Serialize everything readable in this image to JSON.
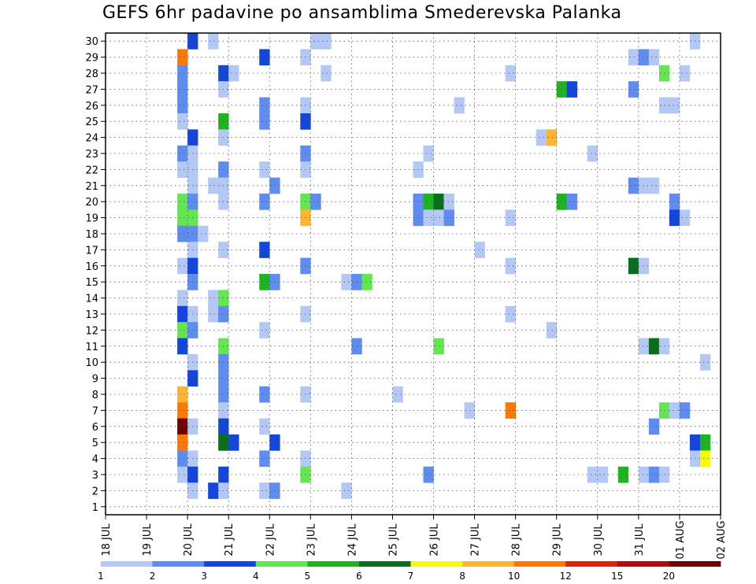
{
  "chart_data": {
    "type": "heatmap",
    "title": "GEFS 6hr padavine po ansamblima Smederevska Palanka",
    "x_tick_labels": [
      "18 JUL",
      "19 JUL",
      "20 JUL",
      "21 JUL",
      "22 JUL",
      "23 JUL",
      "24 JUL",
      "25 JUL",
      "26 JUL",
      "27 JUL",
      "28 JUL",
      "29 JUL",
      "30 JUL",
      "31 JUL",
      "01 AUG",
      "02 AUG"
    ],
    "y_tick_labels": [
      1,
      2,
      3,
      4,
      5,
      6,
      7,
      8,
      9,
      10,
      11,
      12,
      13,
      14,
      15,
      16,
      17,
      18,
      19,
      20,
      21,
      22,
      23,
      24,
      25,
      26,
      27,
      28,
      29,
      30
    ],
    "x_unit": "6-hour step (4 steps per day)",
    "grid": true,
    "colorbar": {
      "levels": [
        1,
        2,
        3,
        4,
        5,
        6,
        7,
        8,
        10,
        12,
        15,
        20
      ],
      "labels": [
        "1",
        "2",
        "3",
        "4",
        "5",
        "6",
        "7",
        "8",
        "10",
        "12",
        "15",
        "20"
      ],
      "colors": [
        "#b4c8f5",
        "#5f8cf0",
        "#1446dc",
        "#64e650",
        "#1eb41e",
        "#0a6e1e",
        "#fafa00",
        "#ffb432",
        "#ff7800",
        "#e61e0a",
        "#b40a0a",
        "#6e0000"
      ]
    },
    "cells": [
      {
        "m": 30,
        "t": 8,
        "c": 2
      },
      {
        "m": 30,
        "t": 10,
        "c": 0
      },
      {
        "m": 30,
        "t": 20,
        "c": 0
      },
      {
        "m": 30,
        "t": 21,
        "c": 0
      },
      {
        "m": 30,
        "t": 57,
        "c": 0
      },
      {
        "m": 29,
        "t": 7,
        "c": 8
      },
      {
        "m": 29,
        "t": 15,
        "c": 2
      },
      {
        "m": 29,
        "t": 19,
        "c": 0
      },
      {
        "m": 29,
        "t": 51,
        "c": 0
      },
      {
        "m": 29,
        "t": 52,
        "c": 1
      },
      {
        "m": 29,
        "t": 53,
        "c": 0
      },
      {
        "m": 28,
        "t": 7,
        "c": 1
      },
      {
        "m": 28,
        "t": 11,
        "c": 2
      },
      {
        "m": 28,
        "t": 12,
        "c": 0
      },
      {
        "m": 28,
        "t": 21,
        "c": 0
      },
      {
        "m": 28,
        "t": 39,
        "c": 0
      },
      {
        "m": 28,
        "t": 54,
        "c": 3
      },
      {
        "m": 28,
        "t": 56,
        "c": 0
      },
      {
        "m": 27,
        "t": 7,
        "c": 1
      },
      {
        "m": 27,
        "t": 11,
        "c": 0
      },
      {
        "m": 27,
        "t": 44,
        "c": 4
      },
      {
        "m": 27,
        "t": 45,
        "c": 2
      },
      {
        "m": 27,
        "t": 51,
        "c": 1
      },
      {
        "m": 26,
        "t": 7,
        "c": 1
      },
      {
        "m": 26,
        "t": 15,
        "c": 1
      },
      {
        "m": 26,
        "t": 19,
        "c": 0
      },
      {
        "m": 26,
        "t": 34,
        "c": 0
      },
      {
        "m": 26,
        "t": 54,
        "c": 0
      },
      {
        "m": 26,
        "t": 55,
        "c": 0
      },
      {
        "m": 25,
        "t": 7,
        "c": 0
      },
      {
        "m": 25,
        "t": 11,
        "c": 4
      },
      {
        "m": 25,
        "t": 15,
        "c": 1
      },
      {
        "m": 25,
        "t": 19,
        "c": 2
      },
      {
        "m": 24,
        "t": 8,
        "c": 2
      },
      {
        "m": 24,
        "t": 11,
        "c": 0
      },
      {
        "m": 24,
        "t": 42,
        "c": 0
      },
      {
        "m": 24,
        "t": 43,
        "c": 7
      },
      {
        "m": 23,
        "t": 7,
        "c": 1
      },
      {
        "m": 23,
        "t": 8,
        "c": 0
      },
      {
        "m": 23,
        "t": 19,
        "c": 1
      },
      {
        "m": 23,
        "t": 31,
        "c": 0
      },
      {
        "m": 23,
        "t": 47,
        "c": 0
      },
      {
        "m": 22,
        "t": 7,
        "c": 0
      },
      {
        "m": 22,
        "t": 8,
        "c": 0
      },
      {
        "m": 22,
        "t": 11,
        "c": 1
      },
      {
        "m": 22,
        "t": 15,
        "c": 0
      },
      {
        "m": 22,
        "t": 19,
        "c": 0
      },
      {
        "m": 22,
        "t": 30,
        "c": 0
      },
      {
        "m": 21,
        "t": 8,
        "c": 0
      },
      {
        "m": 21,
        "t": 10,
        "c": 0
      },
      {
        "m": 21,
        "t": 11,
        "c": 0
      },
      {
        "m": 21,
        "t": 16,
        "c": 1
      },
      {
        "m": 21,
        "t": 51,
        "c": 1
      },
      {
        "m": 21,
        "t": 52,
        "c": 0
      },
      {
        "m": 21,
        "t": 53,
        "c": 0
      },
      {
        "m": 20,
        "t": 7,
        "c": 3
      },
      {
        "m": 20,
        "t": 8,
        "c": 1
      },
      {
        "m": 20,
        "t": 11,
        "c": 0
      },
      {
        "m": 20,
        "t": 15,
        "c": 1
      },
      {
        "m": 20,
        "t": 19,
        "c": 3
      },
      {
        "m": 20,
        "t": 20,
        "c": 1
      },
      {
        "m": 20,
        "t": 30,
        "c": 1
      },
      {
        "m": 20,
        "t": 31,
        "c": 4
      },
      {
        "m": 20,
        "t": 32,
        "c": 5
      },
      {
        "m": 20,
        "t": 33,
        "c": 0
      },
      {
        "m": 20,
        "t": 44,
        "c": 4
      },
      {
        "m": 20,
        "t": 45,
        "c": 1
      },
      {
        "m": 20,
        "t": 55,
        "c": 1
      },
      {
        "m": 19,
        "t": 7,
        "c": 3
      },
      {
        "m": 19,
        "t": 8,
        "c": 3
      },
      {
        "m": 19,
        "t": 19,
        "c": 7
      },
      {
        "m": 19,
        "t": 30,
        "c": 1
      },
      {
        "m": 19,
        "t": 31,
        "c": 0
      },
      {
        "m": 19,
        "t": 32,
        "c": 0
      },
      {
        "m": 19,
        "t": 33,
        "c": 1
      },
      {
        "m": 19,
        "t": 39,
        "c": 0
      },
      {
        "m": 19,
        "t": 55,
        "c": 2
      },
      {
        "m": 19,
        "t": 56,
        "c": 0
      },
      {
        "m": 18,
        "t": 7,
        "c": 1
      },
      {
        "m": 18,
        "t": 8,
        "c": 1
      },
      {
        "m": 18,
        "t": 9,
        "c": 0
      },
      {
        "m": 17,
        "t": 8,
        "c": 0
      },
      {
        "m": 17,
        "t": 11,
        "c": 0
      },
      {
        "m": 17,
        "t": 15,
        "c": 2
      },
      {
        "m": 17,
        "t": 36,
        "c": 0
      },
      {
        "m": 16,
        "t": 7,
        "c": 0
      },
      {
        "m": 16,
        "t": 8,
        "c": 2
      },
      {
        "m": 16,
        "t": 19,
        "c": 1
      },
      {
        "m": 16,
        "t": 39,
        "c": 0
      },
      {
        "m": 16,
        "t": 51,
        "c": 5
      },
      {
        "m": 16,
        "t": 52,
        "c": 0
      },
      {
        "m": 15,
        "t": 8,
        "c": 1
      },
      {
        "m": 15,
        "t": 15,
        "c": 4
      },
      {
        "m": 15,
        "t": 16,
        "c": 1
      },
      {
        "m": 15,
        "t": 23,
        "c": 0
      },
      {
        "m": 15,
        "t": 24,
        "c": 1
      },
      {
        "m": 15,
        "t": 25,
        "c": 3
      },
      {
        "m": 14,
        "t": 7,
        "c": 0
      },
      {
        "m": 14,
        "t": 10,
        "c": 0
      },
      {
        "m": 14,
        "t": 11,
        "c": 3
      },
      {
        "m": 13,
        "t": 7,
        "c": 2
      },
      {
        "m": 13,
        "t": 8,
        "c": 0
      },
      {
        "m": 13,
        "t": 10,
        "c": 0
      },
      {
        "m": 13,
        "t": 11,
        "c": 1
      },
      {
        "m": 13,
        "t": 19,
        "c": 0
      },
      {
        "m": 13,
        "t": 39,
        "c": 0
      },
      {
        "m": 12,
        "t": 7,
        "c": 3
      },
      {
        "m": 12,
        "t": 8,
        "c": 1
      },
      {
        "m": 12,
        "t": 15,
        "c": 0
      },
      {
        "m": 12,
        "t": 43,
        "c": 0
      },
      {
        "m": 11,
        "t": 7,
        "c": 2
      },
      {
        "m": 11,
        "t": 11,
        "c": 3
      },
      {
        "m": 11,
        "t": 24,
        "c": 1
      },
      {
        "m": 11,
        "t": 32,
        "c": 3
      },
      {
        "m": 11,
        "t": 52,
        "c": 0
      },
      {
        "m": 11,
        "t": 53,
        "c": 5
      },
      {
        "m": 11,
        "t": 54,
        "c": 0
      },
      {
        "m": 10,
        "t": 8,
        "c": 0
      },
      {
        "m": 10,
        "t": 11,
        "c": 1
      },
      {
        "m": 10,
        "t": 58,
        "c": 0
      },
      {
        "m": 9,
        "t": 8,
        "c": 2
      },
      {
        "m": 9,
        "t": 11,
        "c": 1
      },
      {
        "m": 8,
        "t": 7,
        "c": 7
      },
      {
        "m": 8,
        "t": 11,
        "c": 1
      },
      {
        "m": 8,
        "t": 15,
        "c": 1
      },
      {
        "m": 8,
        "t": 19,
        "c": 0
      },
      {
        "m": 8,
        "t": 28,
        "c": 0
      },
      {
        "m": 7,
        "t": 7,
        "c": 8
      },
      {
        "m": 7,
        "t": 11,
        "c": 0
      },
      {
        "m": 7,
        "t": 35,
        "c": 0
      },
      {
        "m": 7,
        "t": 39,
        "c": 8
      },
      {
        "m": 7,
        "t": 54,
        "c": 3
      },
      {
        "m": 7,
        "t": 55,
        "c": 0
      },
      {
        "m": 7,
        "t": 56,
        "c": 1
      },
      {
        "m": 6,
        "t": 7,
        "c": 11
      },
      {
        "m": 6,
        "t": 8,
        "c": 0
      },
      {
        "m": 6,
        "t": 11,
        "c": 2
      },
      {
        "m": 6,
        "t": 15,
        "c": 0
      },
      {
        "m": 6,
        "t": 53,
        "c": 1
      },
      {
        "m": 5,
        "t": 7,
        "c": 8
      },
      {
        "m": 5,
        "t": 11,
        "c": 5
      },
      {
        "m": 5,
        "t": 12,
        "c": 2
      },
      {
        "m": 5,
        "t": 16,
        "c": 2
      },
      {
        "m": 5,
        "t": 57,
        "c": 2
      },
      {
        "m": 5,
        "t": 58,
        "c": 4
      },
      {
        "m": 4,
        "t": 7,
        "c": 1
      },
      {
        "m": 4,
        "t": 8,
        "c": 0
      },
      {
        "m": 4,
        "t": 15,
        "c": 1
      },
      {
        "m": 4,
        "t": 19,
        "c": 0
      },
      {
        "m": 4,
        "t": 57,
        "c": 0
      },
      {
        "m": 4,
        "t": 58,
        "c": 6
      },
      {
        "m": 3,
        "t": 7,
        "c": 0
      },
      {
        "m": 3,
        "t": 8,
        "c": 2
      },
      {
        "m": 3,
        "t": 11,
        "c": 2
      },
      {
        "m": 3,
        "t": 19,
        "c": 3
      },
      {
        "m": 3,
        "t": 31,
        "c": 1
      },
      {
        "m": 3,
        "t": 47,
        "c": 0
      },
      {
        "m": 3,
        "t": 48,
        "c": 0
      },
      {
        "m": 3,
        "t": 50,
        "c": 4
      },
      {
        "m": 3,
        "t": 52,
        "c": 0
      },
      {
        "m": 3,
        "t": 53,
        "c": 1
      },
      {
        "m": 3,
        "t": 54,
        "c": 0
      },
      {
        "m": 2,
        "t": 8,
        "c": 0
      },
      {
        "m": 2,
        "t": 10,
        "c": 2
      },
      {
        "m": 2,
        "t": 11,
        "c": 0
      },
      {
        "m": 2,
        "t": 15,
        "c": 0
      },
      {
        "m": 2,
        "t": 16,
        "c": 1
      },
      {
        "m": 2,
        "t": 23,
        "c": 0
      }
    ]
  }
}
